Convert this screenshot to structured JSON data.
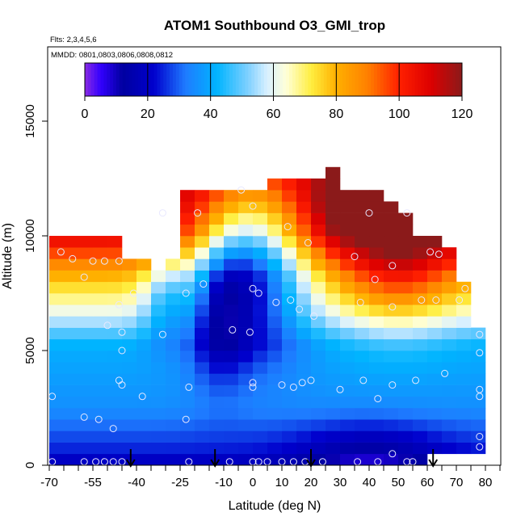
{
  "chart_data": {
    "type": "heatmap",
    "title": "ATOM1 Southbound O3_GMI_trop",
    "annotations": {
      "flights": "Flts: 2,3,4,5,6",
      "dates": "MMDD: 0801,0803,0806,0808,0812"
    },
    "xlabel": "Latitude (deg N)",
    "ylabel": "Altitude (m)",
    "xlim": [
      -70,
      85
    ],
    "ylim": [
      0,
      17500
    ],
    "x_ticks": [
      -70,
      -55,
      -40,
      -25,
      -10,
      0,
      10,
      20,
      30,
      40,
      50,
      60,
      70,
      80
    ],
    "x_tick_labels": [
      "-70",
      "-55",
      "-40",
      "-25",
      "-10",
      "0",
      "10",
      "20",
      "30",
      "40",
      "50",
      "60",
      "70",
      "80"
    ],
    "y_ticks": [
      0,
      5000,
      10000,
      15000
    ],
    "y_tick_labels": [
      "0",
      "5000",
      "10000",
      "15000"
    ],
    "colorbar": {
      "min": 0,
      "max": 120,
      "ticks": [
        0,
        20,
        40,
        60,
        80,
        100,
        120
      ],
      "tick_labels": [
        "0",
        "20",
        "40",
        "60",
        "80",
        "100",
        "120"
      ],
      "stops": [
        {
          "v": 0,
          "color": "#8a2be2"
        },
        {
          "v": 5,
          "color": "#3300ff"
        },
        {
          "v": 12,
          "color": "#0000a0"
        },
        {
          "v": 22,
          "color": "#0000cd"
        },
        {
          "v": 32,
          "color": "#1e7bff"
        },
        {
          "v": 42,
          "color": "#00b4ff"
        },
        {
          "v": 52,
          "color": "#80d0ff"
        },
        {
          "v": 58,
          "color": "#d8f0ff"
        },
        {
          "v": 64,
          "color": "#ffffd8"
        },
        {
          "v": 72,
          "color": "#ffee40"
        },
        {
          "v": 80,
          "color": "#ffb000"
        },
        {
          "v": 90,
          "color": "#ff8000"
        },
        {
          "v": 100,
          "color": "#ff2000"
        },
        {
          "v": 110,
          "color": "#dd0000"
        },
        {
          "v": 120,
          "color": "#8b1a1a"
        }
      ]
    },
    "grid_x_centers": [
      -67.5,
      -62.5,
      -57.5,
      -52.5,
      -47.5,
      -42.5,
      -37.5,
      -32.5,
      -27.5,
      -22.5,
      -17.5,
      -12.5,
      -7.5,
      -2.5,
      2.5,
      7.5,
      12.5,
      17.5,
      22.5,
      27.5,
      32.5,
      37.5,
      42.5,
      47.5,
      52.5,
      57.5,
      62.5,
      67.5,
      72.5,
      77.5
    ],
    "grid_y_centers": [
      250,
      750,
      1250,
      1750,
      2250,
      2750,
      3250,
      3750,
      4250,
      4750,
      5250,
      5750,
      6250,
      6750,
      7250,
      7750,
      8250,
      8750,
      9250,
      9750,
      10250,
      10750,
      11250,
      11750,
      12250,
      12750,
      13250
    ],
    "grid_top_altitude": [
      10000,
      10000,
      10000,
      10000,
      10000,
      9000,
      9000,
      8500,
      9000,
      11800,
      11800,
      11800,
      11800,
      11800,
      11800,
      12500,
      12500,
      12500,
      12500,
      13200,
      12000,
      12000,
      12000,
      11500,
      11000,
      10000,
      10000,
      9500,
      8000,
      6000
    ],
    "grid_bottom_altitude": [
      0,
      0,
      0,
      0,
      0,
      0,
      0,
      0,
      0,
      0,
      0,
      0,
      0,
      0,
      0,
      0,
      0,
      0,
      0,
      0,
      0,
      0,
      0,
      0,
      0,
      0,
      500,
      500,
      500,
      500
    ],
    "o3_ppb": [
      [
        20,
        20,
        20,
        20,
        20,
        20,
        20,
        20,
        20,
        20,
        20,
        20,
        20,
        20,
        20,
        20,
        20,
        20,
        20,
        20,
        20,
        20,
        20,
        20,
        20,
        20,
        20,
        20,
        20,
        20
      ],
      [
        25,
        25,
        25,
        25,
        25,
        25,
        25,
        25,
        25,
        25,
        25,
        25,
        25,
        25,
        25,
        25,
        25,
        25,
        25,
        25,
        25,
        25,
        25,
        25,
        25,
        25,
        25,
        25,
        25,
        25
      ],
      [
        28,
        28,
        28,
        28,
        28,
        28,
        28,
        28,
        28,
        28,
        28,
        28,
        28,
        28,
        28,
        28,
        28,
        28,
        28,
        28,
        28,
        28,
        28,
        28,
        28,
        28,
        28,
        28,
        28,
        28
      ],
      [
        31,
        31,
        31,
        31,
        31,
        31,
        31,
        31,
        31,
        31,
        31,
        31,
        31,
        31,
        31,
        31,
        31,
        31,
        31,
        31,
        31,
        31,
        31,
        31,
        31,
        31,
        31,
        31,
        31,
        31
      ],
      [
        34,
        34,
        34,
        34,
        34,
        34,
        34,
        34,
        34,
        34,
        34,
        34,
        34,
        34,
        34,
        34,
        34,
        34,
        34,
        34,
        34,
        34,
        34,
        34,
        34,
        34,
        34,
        34,
        34,
        34
      ],
      [
        36,
        36,
        36,
        36,
        36,
        36,
        36,
        36,
        36,
        36,
        36,
        36,
        36,
        36,
        36,
        36,
        36,
        36,
        36,
        36,
        36,
        36,
        36,
        36,
        36,
        36,
        36,
        36,
        36,
        36
      ],
      [
        37,
        37,
        37,
        37,
        37,
        37,
        37,
        37,
        37,
        37,
        37,
        37,
        37,
        37,
        37,
        37,
        37,
        37,
        37,
        37,
        37,
        37,
        37,
        37,
        37,
        37,
        37,
        37,
        37,
        37
      ],
      [
        38,
        38,
        38,
        38,
        38,
        38,
        38,
        38,
        38,
        38,
        38,
        38,
        38,
        38,
        38,
        38,
        38,
        38,
        38,
        38,
        38,
        38,
        38,
        38,
        38,
        38,
        38,
        38,
        38,
        38
      ],
      [
        39,
        39,
        39,
        39,
        39,
        39,
        39,
        39,
        39,
        39,
        39,
        39,
        39,
        39,
        39,
        39,
        39,
        39,
        39,
        39,
        39,
        39,
        39,
        39,
        39,
        39,
        39,
        39,
        39,
        39
      ],
      [
        40,
        40,
        40,
        40,
        40,
        40,
        40,
        40,
        40,
        40,
        40,
        40,
        40,
        40,
        40,
        40,
        40,
        40,
        40,
        40,
        40,
        40,
        40,
        40,
        40,
        40,
        40,
        40,
        40,
        40
      ],
      [
        42,
        42,
        42,
        42,
        42,
        42,
        42,
        42,
        42,
        42,
        42,
        42,
        42,
        42,
        42,
        42,
        42,
        42,
        42,
        42,
        42,
        42,
        42,
        42,
        42,
        42,
        42,
        42,
        42,
        42
      ],
      [
        48,
        48,
        48,
        48,
        48,
        48,
        48,
        48,
        48,
        48,
        48,
        48,
        48,
        48,
        48,
        48,
        48,
        48,
        48,
        48,
        48,
        48,
        48,
        48,
        48,
        48,
        48,
        48,
        48,
        48
      ],
      [
        55,
        55,
        55,
        55,
        55,
        55,
        55,
        55,
        55,
        55,
        55,
        55,
        55,
        55,
        55,
        55,
        55,
        55,
        55,
        55,
        55,
        55,
        55,
        55,
        55,
        55,
        55,
        55,
        55,
        55
      ],
      [
        62,
        62,
        62,
        62,
        62,
        62,
        62,
        62,
        62,
        62,
        62,
        62,
        62,
        62,
        62,
        62,
        62,
        62,
        62,
        62,
        62,
        62,
        62,
        62,
        62,
        62,
        62,
        62,
        62,
        62
      ],
      [
        68,
        68,
        68,
        68,
        68,
        68,
        68,
        68,
        68,
        68,
        68,
        68,
        68,
        68,
        68,
        68,
        68,
        68,
        68,
        68,
        68,
        68,
        68,
        68,
        68,
        68,
        68,
        68,
        68,
        68
      ],
      [
        74,
        74,
        74,
        74,
        74,
        74,
        74,
        74,
        74,
        74,
        74,
        74,
        74,
        74,
        74,
        74,
        74,
        74,
        74,
        74,
        74,
        74,
        74,
        74,
        74,
        74,
        74,
        74,
        74,
        74
      ],
      [
        80,
        80,
        80,
        80,
        80,
        80,
        80,
        80,
        80,
        80,
        80,
        80,
        80,
        80,
        80,
        80,
        80,
        80,
        80,
        80,
        80,
        80,
        80,
        80,
        80,
        80,
        80,
        80,
        80,
        80
      ],
      [
        88,
        88,
        88,
        88,
        88,
        88,
        88,
        88,
        88,
        88,
        88,
        88,
        88,
        88,
        88,
        88,
        88,
        88,
        88,
        88,
        88,
        88,
        88,
        88,
        88,
        88,
        88,
        88,
        88,
        88
      ],
      [
        96,
        96,
        96,
        96,
        96,
        96,
        96,
        96,
        96,
        96,
        96,
        96,
        96,
        96,
        96,
        96,
        96,
        96,
        96,
        96,
        96,
        96,
        96,
        96,
        96,
        96,
        96,
        96,
        96,
        96
      ],
      [
        104,
        104,
        104,
        104,
        104,
        104,
        104,
        104,
        104,
        104,
        104,
        104,
        104,
        104,
        104,
        104,
        104,
        104,
        104,
        104,
        104,
        104,
        104,
        104,
        104,
        104,
        104,
        104,
        104,
        104
      ],
      [
        110,
        110,
        110,
        110,
        110,
        110,
        110,
        110,
        110,
        110,
        110,
        110,
        110,
        110,
        110,
        110,
        110,
        110,
        110,
        110,
        110,
        110,
        110,
        110,
        110,
        110,
        110,
        110,
        110,
        110
      ],
      [
        112,
        112,
        112,
        112,
        112,
        112,
        112,
        112,
        112,
        112,
        112,
        112,
        112,
        112,
        112,
        112,
        112,
        112,
        112,
        112,
        112,
        112,
        112,
        112,
        112,
        112,
        112,
        112,
        112,
        112
      ],
      [
        114,
        114,
        114,
        114,
        114,
        114,
        114,
        114,
        114,
        114,
        114,
        114,
        114,
        114,
        114,
        114,
        114,
        114,
        114,
        114,
        114,
        114,
        114,
        114,
        114,
        114,
        114,
        114,
        114,
        114
      ],
      [
        115,
        115,
        115,
        115,
        115,
        115,
        115,
        115,
        115,
        115,
        115,
        115,
        115,
        115,
        115,
        115,
        115,
        115,
        115,
        115,
        115,
        115,
        115,
        115,
        115,
        115,
        115,
        115,
        115,
        115
      ],
      [
        115,
        115,
        115,
        115,
        115,
        115,
        115,
        115,
        115,
        115,
        115,
        115,
        115,
        115,
        115,
        115,
        115,
        115,
        115,
        115,
        115,
        115,
        115,
        115,
        115,
        115,
        115,
        115,
        115,
        115
      ],
      [
        115,
        115,
        115,
        115,
        115,
        115,
        115,
        115,
        115,
        115,
        115,
        115,
        115,
        115,
        115,
        115,
        115,
        115,
        115,
        115,
        115,
        115,
        115,
        115,
        115,
        115,
        115,
        115,
        115,
        115
      ],
      [
        115,
        115,
        115,
        115,
        115,
        115,
        115,
        115,
        115,
        115,
        115,
        115,
        115,
        115,
        115,
        115,
        115,
        115,
        115,
        115,
        115,
        115,
        115,
        115,
        115,
        115,
        115,
        115,
        115,
        115
      ]
    ],
    "o3_ppb_note": "Base profile by altitude row; script applies regional adjustments (tropical mid-troposphere ~30-40 ppb, NH 45N-70N upper troposphere >90 ppb, surface <15 ppb near 20N-60N).",
    "sample_points": [
      [
        -69,
        150
      ],
      [
        -58,
        150
      ],
      [
        -54,
        150
      ],
      [
        -51,
        150
      ],
      [
        -48,
        150
      ],
      [
        -45,
        150
      ],
      [
        -22,
        150
      ],
      [
        -8,
        150
      ],
      [
        0,
        150
      ],
      [
        2,
        150
      ],
      [
        5,
        150
      ],
      [
        10,
        150
      ],
      [
        14,
        150
      ],
      [
        18,
        150
      ],
      [
        24,
        150
      ],
      [
        36,
        150
      ],
      [
        43,
        150
      ],
      [
        48,
        500
      ],
      [
        53,
        150
      ],
      [
        55,
        150
      ],
      [
        78,
        800
      ],
      [
        78,
        1250
      ],
      [
        -69,
        3000
      ],
      [
        -58,
        2100
      ],
      [
        -53,
        2000
      ],
      [
        -48,
        1600
      ],
      [
        -38,
        3000
      ],
      [
        -23,
        2000
      ],
      [
        -22,
        3400
      ],
      [
        0,
        3400
      ],
      [
        0,
        3600
      ],
      [
        10,
        3500
      ],
      [
        14,
        3400
      ],
      [
        17,
        3600
      ],
      [
        20,
        3700
      ],
      [
        30,
        3300
      ],
      [
        38,
        3700
      ],
      [
        43,
        2900
      ],
      [
        48,
        3500
      ],
      [
        56,
        3700
      ],
      [
        66,
        4000
      ],
      [
        78,
        3000
      ],
      [
        78,
        3300
      ],
      [
        -46,
        3700
      ],
      [
        -45,
        3500
      ],
      [
        -45,
        5000
      ],
      [
        -45,
        5800
      ],
      [
        -50,
        6100
      ],
      [
        -46,
        7000
      ],
      [
        -41,
        7500
      ],
      [
        -31,
        5700
      ],
      [
        -23,
        7500
      ],
      [
        -17,
        7900
      ],
      [
        -7,
        5900
      ],
      [
        -1,
        5800
      ],
      [
        0,
        7700
      ],
      [
        2,
        7500
      ],
      [
        8,
        7100
      ],
      [
        13,
        7200
      ],
      [
        16,
        6800
      ],
      [
        21,
        6500
      ],
      [
        35,
        9100
      ],
      [
        37,
        7100
      ],
      [
        42,
        8100
      ],
      [
        48,
        6900
      ],
      [
        58,
        7200
      ],
      [
        63,
        7200
      ],
      [
        71,
        7200
      ],
      [
        78,
        5700
      ],
      [
        78,
        4900
      ],
      [
        -66,
        9300
      ],
      [
        -62,
        9000
      ],
      [
        -58,
        8200
      ],
      [
        -55,
        8900
      ],
      [
        -51,
        8900
      ],
      [
        -46,
        8900
      ],
      [
        -31,
        11000
      ],
      [
        -19,
        11000
      ],
      [
        -4,
        12000
      ],
      [
        0,
        11300
      ],
      [
        12,
        10400
      ],
      [
        19,
        9700
      ],
      [
        40,
        11000
      ],
      [
        48,
        8700
      ],
      [
        53,
        11000
      ],
      [
        61,
        9300
      ],
      [
        64,
        9200
      ],
      [
        73,
        7700
      ]
    ],
    "leg_markers_latitude": [
      -42,
      -13,
      20,
      62
    ]
  }
}
